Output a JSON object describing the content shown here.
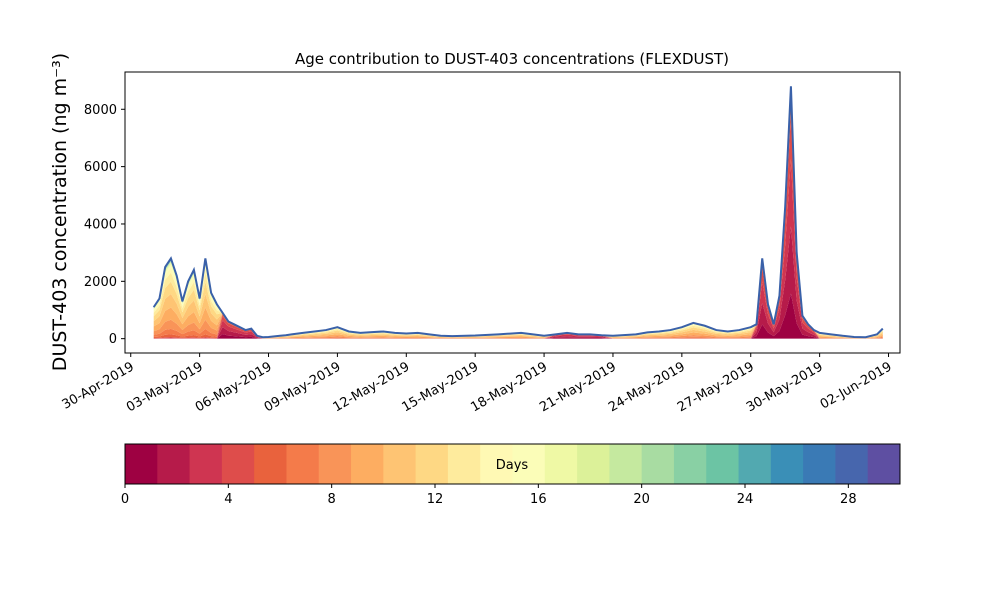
{
  "chart_data": {
    "type": "area",
    "stacked": true,
    "title": "Age contribution to DUST-403 concentrations (FLEXDUST)",
    "ylabel": "DUST-403 concentration (ng m⁻³)",
    "xlabel": "",
    "xlim": [
      "2019-04-29T18:00",
      "2019-06-02T12:00"
    ],
    "ylim": [
      -500,
      9300
    ],
    "yticks": [
      0,
      2000,
      4000,
      6000,
      8000
    ],
    "ytick_labels": [
      "0",
      "2000",
      "4000",
      "6000",
      "8000"
    ],
    "xticks": [
      "2019-04-30",
      "2019-05-03",
      "2019-05-06",
      "2019-05-09",
      "2019-05-12",
      "2019-05-15",
      "2019-05-18",
      "2019-05-21",
      "2019-05-24",
      "2019-05-27",
      "2019-05-30",
      "2019-06-02"
    ],
    "xtick_labels": [
      "30-Apr-2019",
      "03-May-2019",
      "06-May-2019",
      "09-May-2019",
      "12-May-2019",
      "15-May-2019",
      "18-May-2019",
      "21-May-2019",
      "24-May-2019",
      "27-May-2019",
      "30-May-2019",
      "02-Jun-2019"
    ],
    "total_series": {
      "x": [
        "2019-05-01T00:00",
        "2019-05-01T06:00",
        "2019-05-01T12:00",
        "2019-05-01T18:00",
        "2019-05-02T00:00",
        "2019-05-02T06:00",
        "2019-05-02T12:00",
        "2019-05-02T18:00",
        "2019-05-03T00:00",
        "2019-05-03T06:00",
        "2019-05-03T12:00",
        "2019-05-03T18:00",
        "2019-05-04T00:00",
        "2019-05-04T06:00",
        "2019-05-04T12:00",
        "2019-05-04T18:00",
        "2019-05-05T00:00",
        "2019-05-05T06:00",
        "2019-05-05T12:00",
        "2019-05-05T18:00",
        "2019-05-06T00:00",
        "2019-05-06T06:00",
        "2019-05-06T12:00",
        "2019-05-06T18:00",
        "2019-05-07T00:00",
        "2019-05-07T12:00",
        "2019-05-08T00:00",
        "2019-05-08T12:00",
        "2019-05-09T00:00",
        "2019-05-09T12:00",
        "2019-05-10T00:00",
        "2019-05-10T12:00",
        "2019-05-11T00:00",
        "2019-05-11T12:00",
        "2019-05-12T00:00",
        "2019-05-12T12:00",
        "2019-05-13T00:00",
        "2019-05-13T12:00",
        "2019-05-14T00:00",
        "2019-05-15T00:00",
        "2019-05-16T00:00",
        "2019-05-17T00:00",
        "2019-05-18T00:00",
        "2019-05-18T12:00",
        "2019-05-19T00:00",
        "2019-05-19T12:00",
        "2019-05-20T00:00",
        "2019-05-20T12:00",
        "2019-05-21T00:00",
        "2019-05-22T00:00",
        "2019-05-22T12:00",
        "2019-05-23T00:00",
        "2019-05-23T12:00",
        "2019-05-24T00:00",
        "2019-05-24T12:00",
        "2019-05-25T00:00",
        "2019-05-25T12:00",
        "2019-05-26T00:00",
        "2019-05-26T12:00",
        "2019-05-27T00:00",
        "2019-05-27T06:00",
        "2019-05-27T12:00",
        "2019-05-27T18:00",
        "2019-05-28T00:00",
        "2019-05-28T06:00",
        "2019-05-28T12:00",
        "2019-05-28T18:00",
        "2019-05-29T00:00",
        "2019-05-29T06:00",
        "2019-05-29T12:00",
        "2019-05-29T18:00",
        "2019-05-30T00:00",
        "2019-05-30T12:00",
        "2019-05-31T00:00",
        "2019-05-31T12:00",
        "2019-06-01T00:00",
        "2019-06-01T12:00",
        "2019-06-01T18:00"
      ],
      "y": [
        1100,
        1400,
        2500,
        2800,
        2200,
        1300,
        2000,
        2400,
        1400,
        2800,
        1600,
        1200,
        900,
        600,
        500,
        400,
        300,
        350,
        100,
        50,
        60,
        80,
        100,
        120,
        150,
        200,
        250,
        300,
        400,
        250,
        200,
        230,
        250,
        200,
        180,
        200,
        150,
        100,
        90,
        110,
        150,
        200,
        100,
        150,
        200,
        150,
        150,
        120,
        100,
        150,
        220,
        250,
        300,
        400,
        550,
        450,
        300,
        250,
        300,
        400,
        500,
        2800,
        1200,
        500,
        1500,
        4600,
        8800,
        3000,
        800,
        500,
        300,
        200,
        150,
        100,
        60,
        50,
        150,
        350
      ]
    },
    "colorbar": {
      "label": "Days",
      "range": [
        0,
        30
      ],
      "ticks": [
        0,
        4,
        8,
        12,
        16,
        20,
        24,
        28
      ],
      "tick_labels": [
        "0",
        "4",
        "8",
        "12",
        "16",
        "20",
        "24",
        "28"
      ],
      "colors": [
        "#9e0142",
        "#b61b4a",
        "#cf3551",
        "#de4d4b",
        "#e9623d",
        "#f47b4a",
        "#f99458",
        "#fdad61",
        "#fec473",
        "#fed884",
        "#feeb9d",
        "#fff9b4",
        "#fbfdb8",
        "#eff9a5",
        "#dcf199",
        "#c5e99f",
        "#a8dca2",
        "#89d0a4",
        "#6cc4a4",
        "#52a9b0",
        "#3a8fb7",
        "#3a7ab5",
        "#4766ad",
        "#5e4fa2"
      ]
    },
    "outline_color": "#3a61a9",
    "grid": false
  }
}
